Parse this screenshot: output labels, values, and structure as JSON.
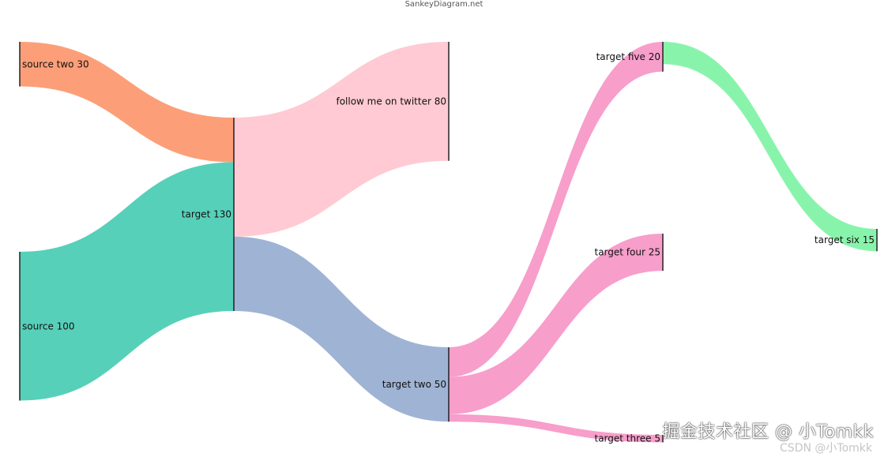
{
  "attribution": "SankeyDiagram.net",
  "watermarks": {
    "main": "掘金技术社区 @ 小Tomkk",
    "csdn": "CSDN @小Tomkk"
  },
  "nodes": [
    {
      "id": "source_two",
      "label": "source two 30",
      "value": 30,
      "column": 0,
      "color": "#fc9f79"
    },
    {
      "id": "source",
      "label": "source 100",
      "value": 100,
      "column": 0,
      "color": "#57d0b9"
    },
    {
      "id": "target",
      "label": "target 130",
      "value": 130,
      "column": 1,
      "color": "#ffcad3"
    },
    {
      "id": "follow",
      "label": "follow me on twitter 80",
      "value": 80,
      "column": 2,
      "color": "#ffcad3"
    },
    {
      "id": "target_two",
      "label": "target two 50",
      "value": 50,
      "column": 2,
      "color": "#9fb3d4"
    },
    {
      "id": "target_five",
      "label": "target five 20",
      "value": 20,
      "column": 3,
      "color": "#f79ecb"
    },
    {
      "id": "target_four",
      "label": "target four 25",
      "value": 25,
      "column": 3,
      "color": "#f79ecb"
    },
    {
      "id": "target_three",
      "label": "target three 5",
      "value": 5,
      "column": 3,
      "color": "#f79ecb"
    },
    {
      "id": "target_six",
      "label": "target six 15",
      "value": 15,
      "column": 4,
      "color": "#88f4ab"
    }
  ],
  "links": [
    {
      "source": "source_two",
      "target": "target",
      "value": 30,
      "color": "#fc9f79"
    },
    {
      "source": "source",
      "target": "target",
      "value": 100,
      "color": "#57d0b9"
    },
    {
      "source": "target",
      "target": "follow",
      "value": 80,
      "color": "#ffcad3"
    },
    {
      "source": "target",
      "target": "target_two",
      "value": 50,
      "color": "#9fb3d4"
    },
    {
      "source": "target_two",
      "target": "target_five",
      "value": 20,
      "color": "#f79ecb"
    },
    {
      "source": "target_two",
      "target": "target_four",
      "value": 25,
      "color": "#f79ecb"
    },
    {
      "source": "target_two",
      "target": "target_three",
      "value": 5,
      "color": "#f79ecb"
    },
    {
      "source": "target_five",
      "target": "target_six",
      "value": 15,
      "color": "#88f4ab"
    }
  ]
}
